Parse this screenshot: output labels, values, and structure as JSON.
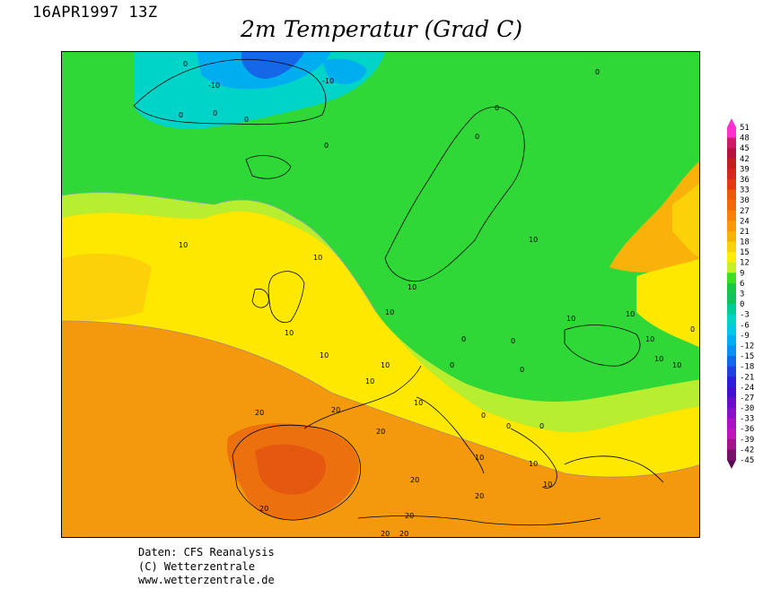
{
  "header": {
    "timestamp": "16APR1997 13Z",
    "title": "2m Temperatur (Grad C)"
  },
  "legend": {
    "levels": [
      "51",
      "48",
      "45",
      "42",
      "39",
      "36",
      "33",
      "30",
      "27",
      "24",
      "21",
      "18",
      "15",
      "12",
      "9",
      "6",
      "3",
      "0",
      "-3",
      "-6",
      "-9",
      "-12",
      "-15",
      "-18",
      "-21",
      "-24",
      "-27",
      "-30",
      "-33",
      "-36",
      "-39",
      "-42",
      "-45"
    ],
    "colors": [
      "#ff2fd0",
      "#d01a6a",
      "#b3133c",
      "#c21f1f",
      "#d42a1c",
      "#e33a12",
      "#ec5a0e",
      "#f06a0c",
      "#f4820b",
      "#f7990a",
      "#f9b20a",
      "#fdd10a",
      "#ffee00",
      "#c8f02a",
      "#3fde24",
      "#19c842",
      "#12c25a",
      "#00cc99",
      "#00d4c8",
      "#00c8e8",
      "#00aef0",
      "#0b90f0",
      "#1468e8",
      "#2040e0",
      "#2a20d8",
      "#4410d0",
      "#6a0ec8",
      "#8c10c4",
      "#a814c0",
      "#bc18b8",
      "#a01490",
      "#7a106c",
      "#5a0a50"
    ]
  },
  "map_labels": {
    "minus10": "-10",
    "zero": "0",
    "ten": "10",
    "twenty": "20"
  },
  "credits": {
    "line1": "Daten: CFS Reanalysis",
    "line2": "(C) Wetterzentrale",
    "line3": "www.wetterzentrale.de"
  }
}
